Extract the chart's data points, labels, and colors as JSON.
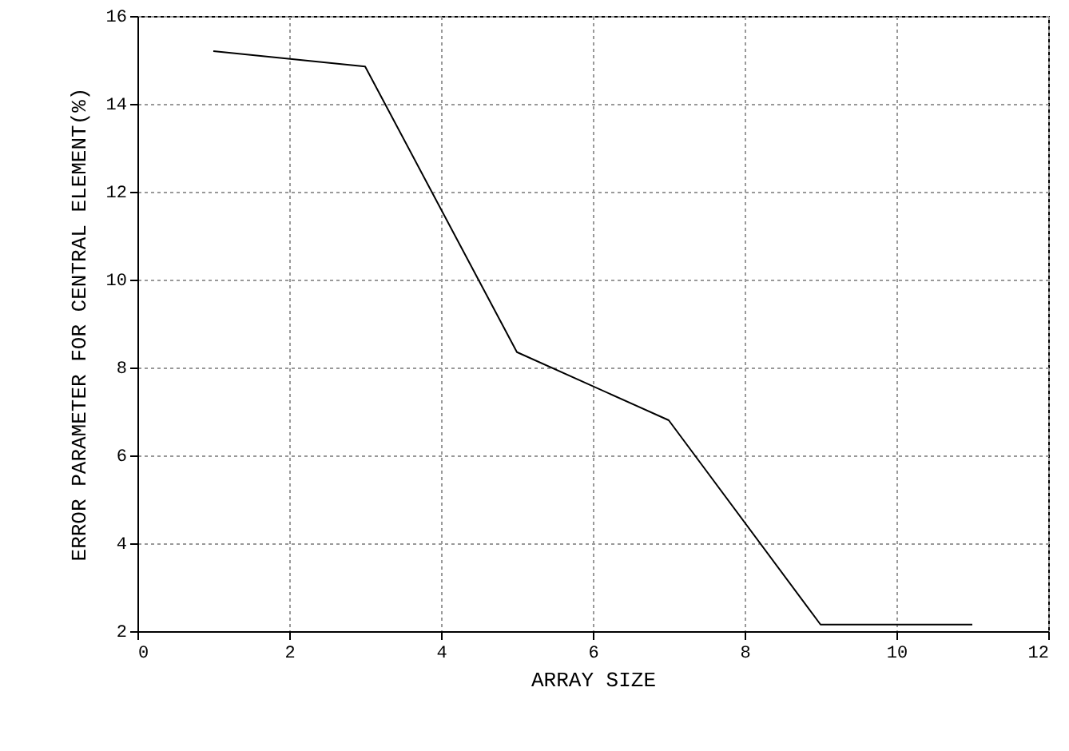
{
  "chart_data": {
    "type": "line",
    "xlabel": "ARRAY SIZE",
    "ylabel": "ERROR PARAMETER FOR CENTRAL ELEMENT(%)",
    "x": [
      1,
      3,
      5,
      7,
      9,
      11
    ],
    "series": [
      {
        "color": "#000000",
        "values": [
          15.2,
          14.85,
          8.35,
          6.8,
          2.15,
          2.15
        ]
      }
    ],
    "xlim": [
      0,
      12
    ],
    "xticks": [
      0,
      2,
      4,
      6,
      8,
      10,
      12
    ],
    "ylim": [
      2,
      16
    ],
    "yticks": [
      2,
      4,
      6,
      8,
      10,
      12,
      14,
      16
    ],
    "grid": true,
    "marker": "none",
    "line_style": "solid"
  }
}
